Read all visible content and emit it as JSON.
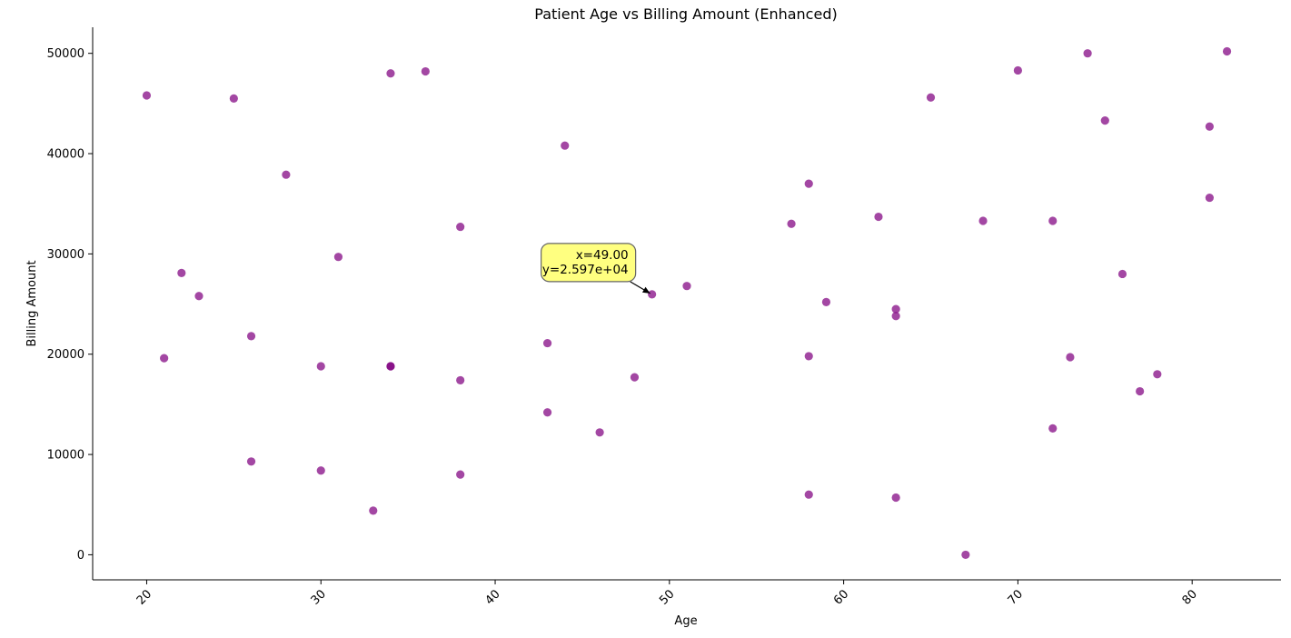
{
  "chart_data": {
    "type": "scatter",
    "title": "Patient Age vs Billing Amount (Enhanced)",
    "xlabel": "Age",
    "ylabel": "Billing Amount",
    "xlim": [
      16.9,
      85.1
    ],
    "ylim": [
      -2500,
      52600
    ],
    "xticks": [
      20,
      30,
      40,
      50,
      60,
      70,
      80
    ],
    "yticks": [
      0,
      10000,
      20000,
      30000,
      40000,
      50000
    ],
    "grid": false,
    "legend": "none",
    "point_color": "#800080",
    "points": [
      [
        20,
        45800
      ],
      [
        21,
        19600
      ],
      [
        22,
        28100
      ],
      [
        23,
        25800
      ],
      [
        25,
        45500
      ],
      [
        26,
        21800
      ],
      [
        26,
        9300
      ],
      [
        28,
        37900
      ],
      [
        30,
        18800
      ],
      [
        30,
        8400
      ],
      [
        31,
        29700
      ],
      [
        33,
        4400
      ],
      [
        34,
        48000
      ],
      [
        34,
        18800
      ],
      [
        34,
        18800
      ],
      [
        36,
        48200
      ],
      [
        38,
        32700
      ],
      [
        38,
        17400
      ],
      [
        38,
        8000
      ],
      [
        43,
        21100
      ],
      [
        43,
        14200
      ],
      [
        44,
        40800
      ],
      [
        46,
        12200
      ],
      [
        48,
        17700
      ],
      [
        49,
        25970
      ],
      [
        51,
        26800
      ],
      [
        57,
        33000
      ],
      [
        58,
        37000
      ],
      [
        58,
        19800
      ],
      [
        58,
        6000
      ],
      [
        59,
        25200
      ],
      [
        62,
        33700
      ],
      [
        63,
        24500
      ],
      [
        63,
        23800
      ],
      [
        63,
        5700
      ],
      [
        65,
        45600
      ],
      [
        67,
        0
      ],
      [
        68,
        33300
      ],
      [
        70,
        48300
      ],
      [
        72,
        33300
      ],
      [
        72,
        12600
      ],
      [
        73,
        19700
      ],
      [
        74,
        50000
      ],
      [
        75,
        43300
      ],
      [
        76,
        28000
      ],
      [
        77,
        16300
      ],
      [
        78,
        18000
      ],
      [
        81,
        42700
      ],
      [
        81,
        35600
      ],
      [
        82,
        50200
      ]
    ],
    "annotation": {
      "point": [
        49,
        25970
      ],
      "line1": "x=49.00",
      "line2": "y=2.597e+04",
      "box_color": "#ffff80"
    }
  }
}
